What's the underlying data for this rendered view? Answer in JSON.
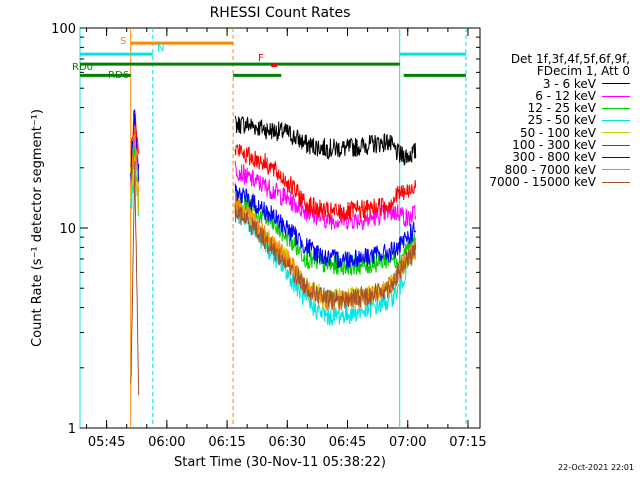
{
  "chart_data": {
    "type": "line",
    "title": "RHESSI Count Rates",
    "xlabel": "Start Time (30-Nov-11 05:38:22)",
    "ylabel": "Count Rate (s⁻¹ detector segment⁻¹)",
    "x_start": "05:38:22",
    "xlim": [
      "05:38:22",
      "07:18:00"
    ],
    "ylim": [
      1,
      100
    ],
    "yscale": "log",
    "x_ticks": [
      "05:45",
      "06:00",
      "06:15",
      "06:30",
      "06:45",
      "07:00",
      "07:15"
    ],
    "y_ticks": [
      "1",
      "10",
      "100"
    ],
    "legend_header": [
      "Det 1f,3f,4f,5f,6f,9f,",
      "FDecim 1, Att 0"
    ],
    "series": [
      {
        "name": "3 - 6 keV",
        "color": "#000000",
        "x": [
          "05:51",
          "05:52",
          "05:53",
          "06:17",
          "06:20",
          "06:25",
          "06:30",
          "06:35",
          "06:40",
          "06:45",
          "06:50",
          "06:55",
          "06:58",
          "07:00",
          "07:02"
        ],
        "y": [
          20,
          33,
          20,
          33,
          33,
          31,
          30,
          26,
          25,
          25,
          26,
          27,
          23,
          23,
          24
        ]
      },
      {
        "name": "6 - 12 keV",
        "color": "#ff00ff",
        "x": [
          "05:51",
          "05:52",
          "05:53",
          "06:17",
          "06:20",
          "06:25",
          "06:30",
          "06:35",
          "06:40",
          "06:45",
          "06:50",
          "06:55",
          "06:58",
          "07:00",
          "07:02"
        ],
        "y": [
          17,
          30,
          17,
          20,
          18,
          16,
          14,
          12,
          11,
          11,
          11,
          12,
          12,
          11,
          12
        ]
      },
      {
        "name": "12 - 25 keV",
        "color": "#00cc00",
        "x": [
          "05:51",
          "05:52",
          "05:53",
          "06:17",
          "06:20",
          "06:25",
          "06:30",
          "06:35",
          "06:40",
          "06:45",
          "06:50",
          "06:55",
          "06:58",
          "07:00",
          "07:02"
        ],
        "y": [
          14,
          24,
          14,
          14,
          13,
          11,
          9,
          7,
          6.5,
          6.5,
          6.5,
          7,
          7,
          8,
          8.5
        ]
      },
      {
        "name": "25 - 50 keV",
        "color": "#00e5e5",
        "x": [
          "05:51",
          "05:52",
          "05:53",
          "06:17",
          "06:20",
          "06:25",
          "06:30",
          "06:35",
          "06:40",
          "06:45",
          "06:50",
          "06:55",
          "06:58",
          "07:00",
          "07:02"
        ],
        "y": [
          12,
          20,
          12,
          12,
          11,
          8,
          6,
          4.2,
          3.6,
          3.7,
          3.9,
          4.3,
          5,
          6.5,
          7.5
        ]
      },
      {
        "name": "50 - 100 keV",
        "color": "#cccc00",
        "x": [
          "05:51",
          "05:52",
          "05:53",
          "06:17",
          "06:20",
          "06:25",
          "06:30",
          "06:35",
          "06:40",
          "06:45",
          "06:50",
          "06:55",
          "06:58",
          "07:00",
          "07:02"
        ],
        "y": [
          13,
          22,
          13,
          13,
          12,
          9,
          7,
          5,
          4.5,
          4.5,
          4.7,
          5,
          6,
          7,
          8
        ]
      },
      {
        "name": "100 - 300 keV",
        "color": "#ff0000",
        "x": [
          "05:51",
          "05:52",
          "05:53",
          "06:17",
          "06:20",
          "06:25",
          "06:26",
          "06:30",
          "06:35",
          "06:40",
          "06:45",
          "06:50",
          "06:55",
          "06:58",
          "07:00",
          "07:02"
        ],
        "y": [
          22,
          42,
          22,
          25,
          23,
          21,
          20,
          17,
          13,
          12,
          12,
          12.5,
          13,
          15,
          15,
          17
        ]
      },
      {
        "name": "300 - 800 keV",
        "color": "#0000ff",
        "x": [
          "05:51",
          "05:52",
          "05:53",
          "06:17",
          "06:20",
          "06:25",
          "06:30",
          "06:35",
          "06:40",
          "06:45",
          "06:50",
          "06:55",
          "06:58",
          "07:00",
          "07:02"
        ],
        "y": [
          18,
          35,
          18,
          15,
          14,
          12,
          10,
          8,
          7,
          7,
          7.2,
          7.5,
          8,
          9,
          10
        ]
      },
      {
        "name": "800 - 7000 keV",
        "color": "#ff8800",
        "x": [
          "05:51",
          "05:52",
          "05:53",
          "06:17",
          "06:20",
          "06:25",
          "06:30",
          "06:35",
          "06:40",
          "06:45",
          "06:50",
          "06:55",
          "06:58",
          "07:00",
          "07:02"
        ],
        "y": [
          15,
          30,
          15,
          13,
          12,
          9,
          7,
          5,
          4.3,
          4.3,
          4.5,
          5,
          6,
          7,
          8
        ]
      },
      {
        "name": "7000 - 15000 keV",
        "color": "#a0522d",
        "x": [
          "05:51",
          "05:52",
          "05:53",
          "06:17",
          "06:20",
          "06:25",
          "06:30",
          "06:35",
          "06:40",
          "06:45",
          "06:50",
          "06:55",
          "06:58",
          "07:00",
          "07:02"
        ],
        "y": [
          1.5,
          20,
          1.5,
          12,
          11,
          8.5,
          6.5,
          5,
          4.4,
          4.4,
          4.6,
          5,
          6,
          7,
          7.5
        ]
      }
    ],
    "vertical_lines": [
      {
        "x": "05:38:22",
        "color": "#00e5e5",
        "style": "solid"
      },
      {
        "x": "05:51:00",
        "color": "#ff8800",
        "style": "solid"
      },
      {
        "x": "05:56:30",
        "color": "#00e5e5",
        "style": "dashed"
      },
      {
        "x": "06:16:30",
        "color": "#ff8800",
        "style": "dashed"
      },
      {
        "x": "06:58:00",
        "color": "#00e5e5",
        "style": "solid"
      },
      {
        "x": "07:14:30",
        "color": "#00e5e5",
        "style": "dashed"
      }
    ],
    "flag_bars": [
      {
        "label": "S",
        "color": "#ff8800",
        "y": 84,
        "segments": [
          [
            "05:51:00",
            "06:16:30"
          ]
        ]
      },
      {
        "label": "N",
        "color": "#00e5e5",
        "y": 74,
        "segments": [
          [
            "05:38:22",
            "05:56:30"
          ],
          [
            "06:58:00",
            "07:14:30"
          ]
        ]
      },
      {
        "label": "RD0",
        "color": "#008000",
        "y": 66,
        "segments": [
          [
            "05:38:22",
            "06:58:00"
          ]
        ]
      },
      {
        "label": "RD6",
        "color": "#008000",
        "y": 58,
        "segments": [
          [
            "05:38:22",
            "05:51:00"
          ],
          [
            "06:16:30",
            "06:28:30"
          ],
          [
            "06:59:00",
            "07:14:30"
          ]
        ]
      },
      {
        "label": "F",
        "color": "#ff0000",
        "y": 65,
        "segments": [
          [
            "06:26:00",
            "06:27:30"
          ]
        ]
      }
    ]
  },
  "timestamp": "22-Oct-2021 22:01"
}
